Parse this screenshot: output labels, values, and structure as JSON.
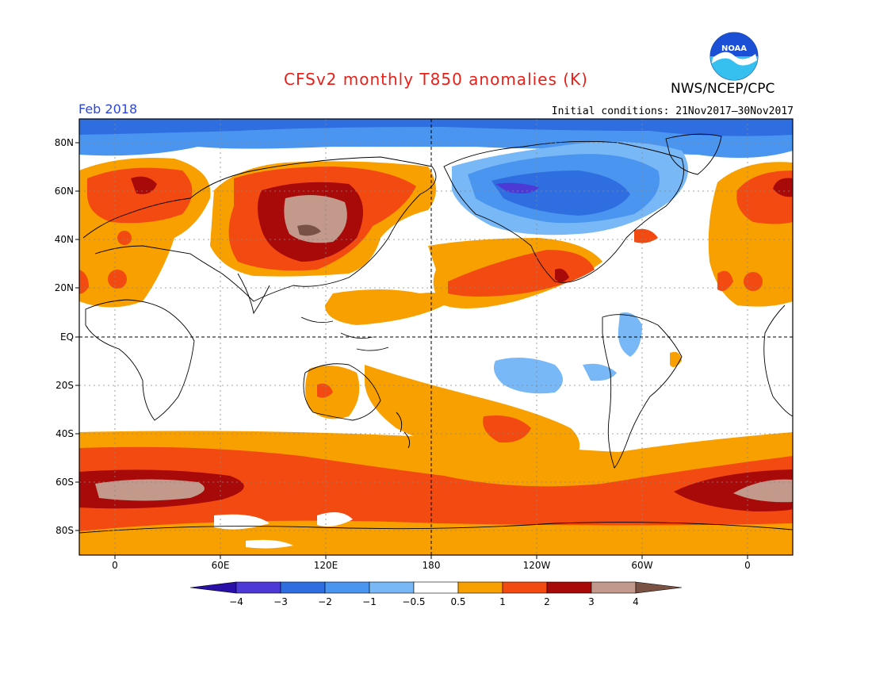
{
  "title": "CFSv2 monthly T850 anomalies (K)",
  "agency": "NWS/NCEP/CPC",
  "logo_text": "NOAA",
  "month": "Feb 2018",
  "initial_conditions": "Initial conditions: 21Nov2017–30Nov2017",
  "y_labels": [
    "80N",
    "60N",
    "40N",
    "20N",
    "EQ",
    "20S",
    "40S",
    "60S",
    "80S"
  ],
  "x_labels": [
    "0",
    "60E",
    "120E",
    "180",
    "120W",
    "60W",
    "0"
  ],
  "colorbar": {
    "labels": [
      "−4",
      "−3",
      "−2",
      "−1",
      "−0.5",
      "0.5",
      "1",
      "2",
      "3",
      "4"
    ],
    "colors": [
      "#2a10a8",
      "#4d3ad6",
      "#2f6ee0",
      "#4a95f0",
      "#79b8f6",
      "#ffffff",
      "#f8a000",
      "#f24a10",
      "#a80a0a",
      "#c2998a",
      "#7a5244"
    ]
  }
}
